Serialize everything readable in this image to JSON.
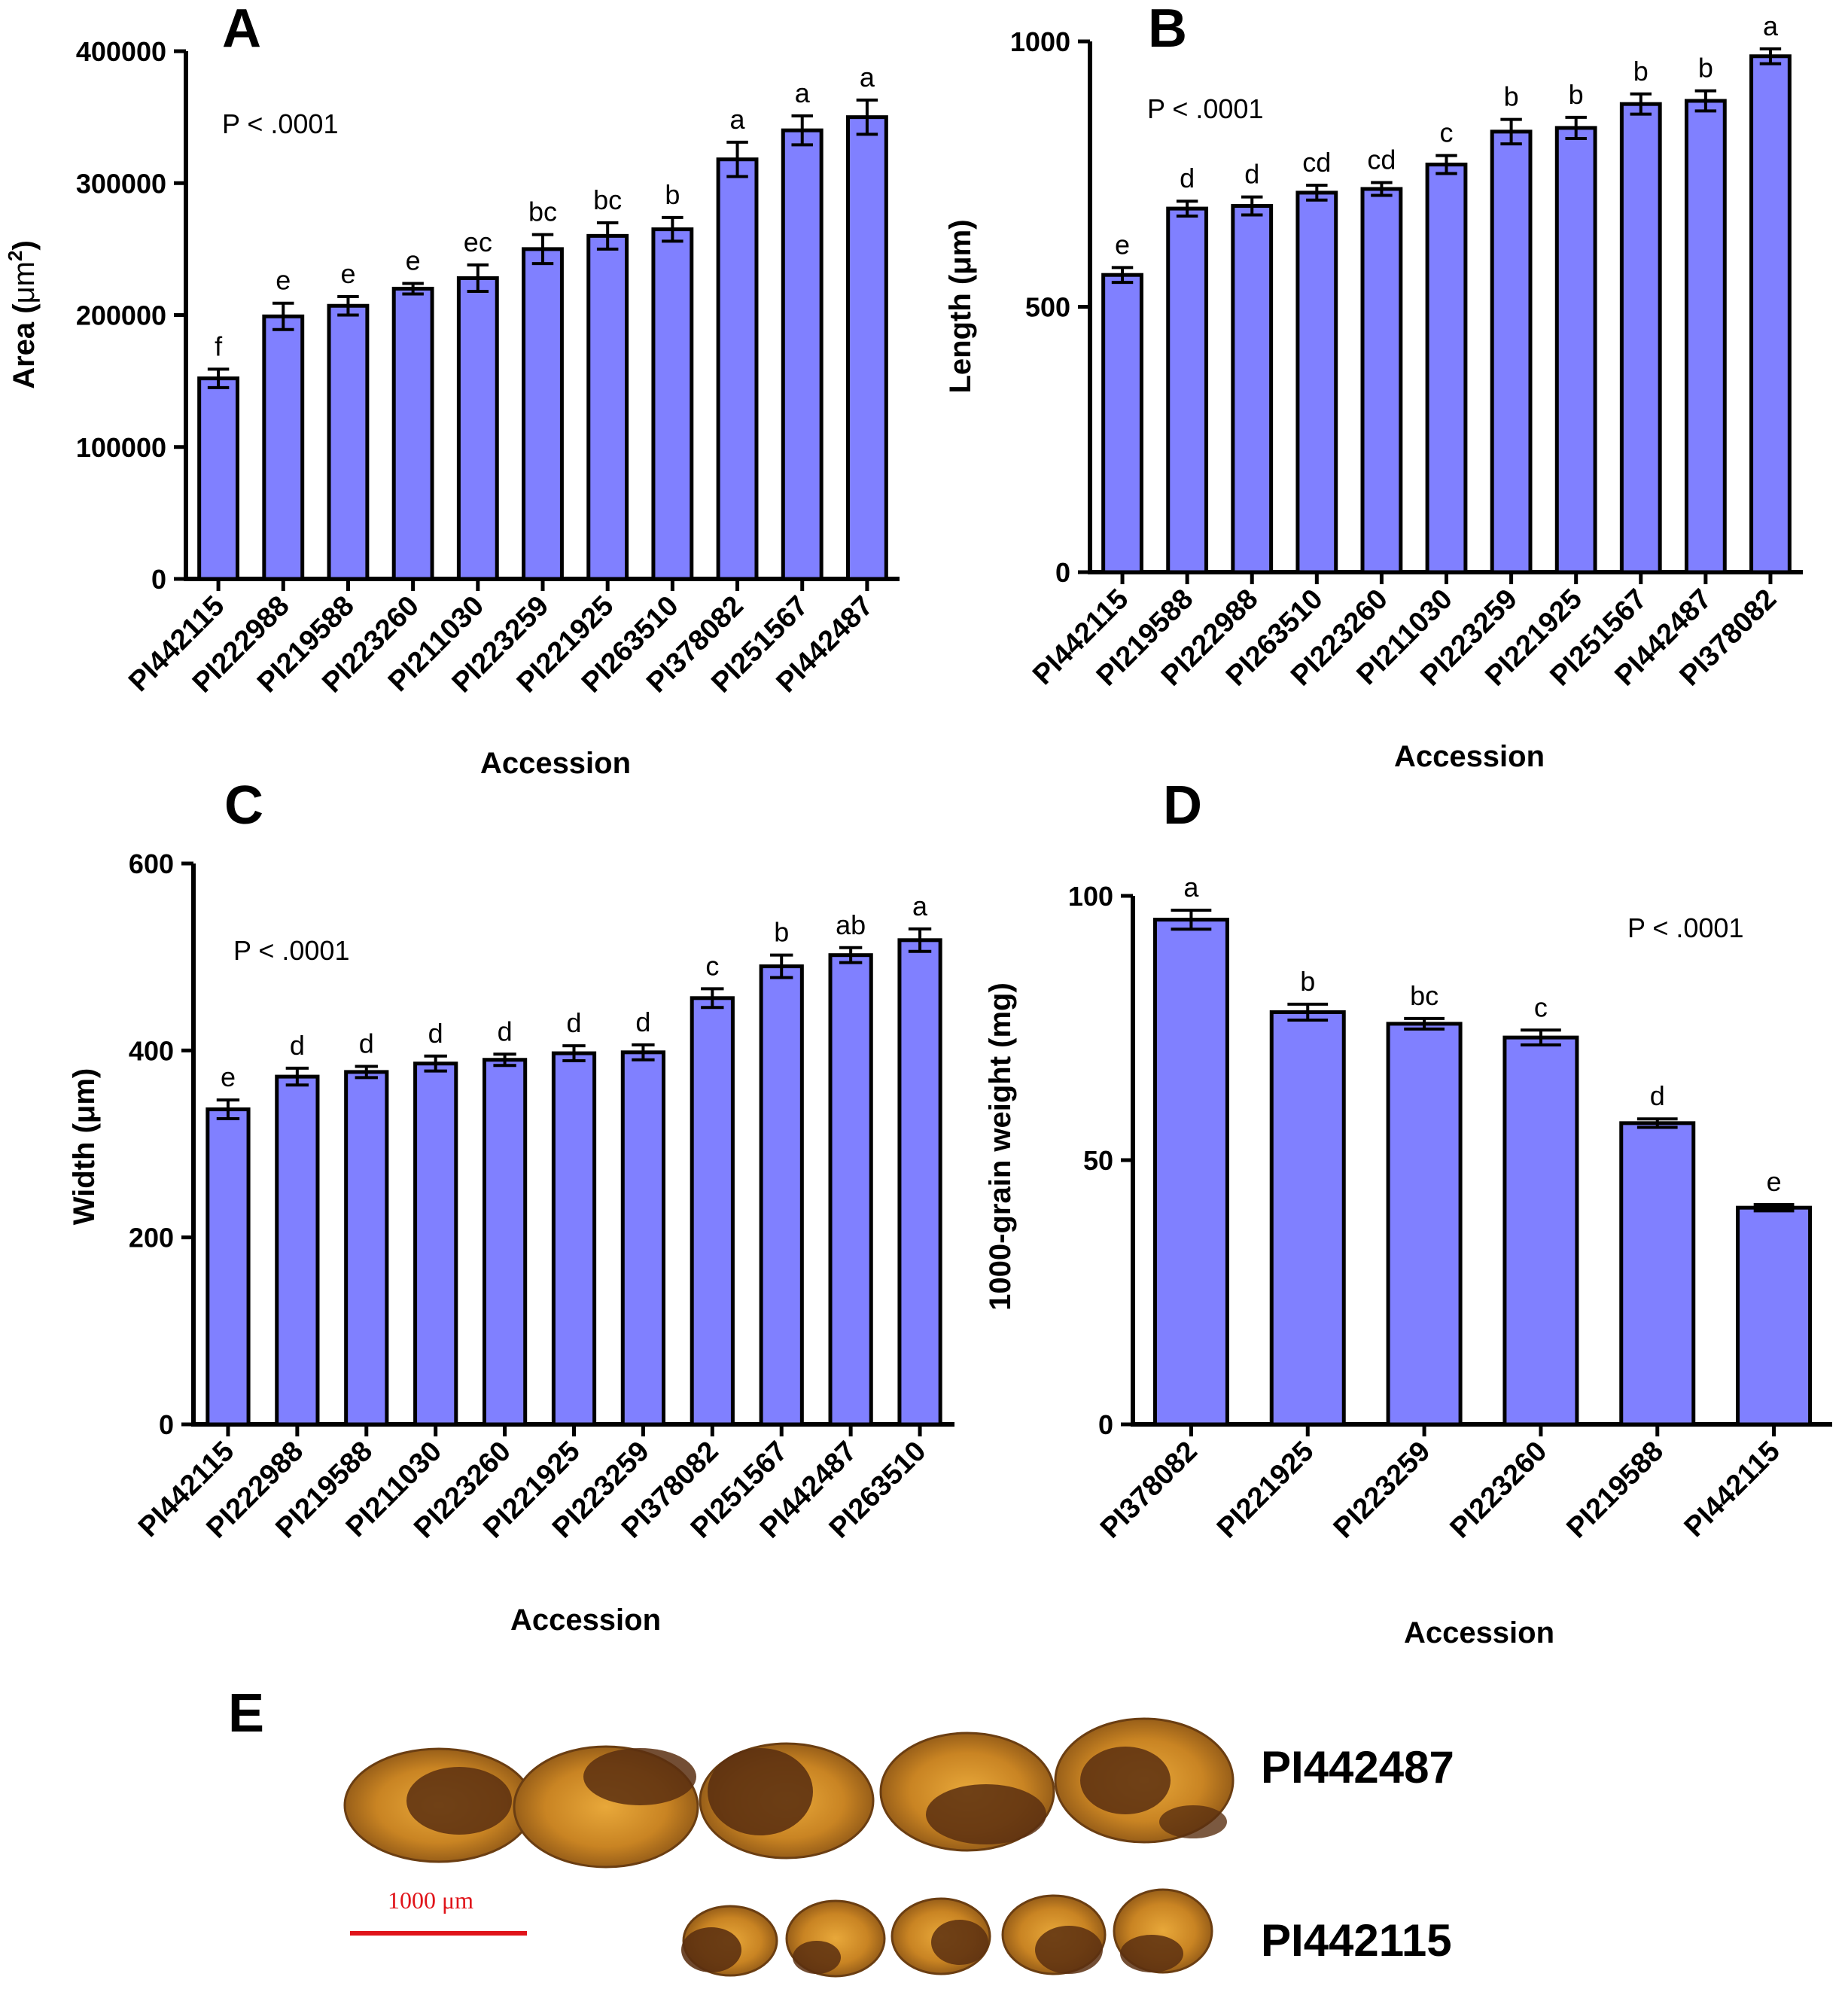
{
  "colors": {
    "bar": "#8080ff",
    "axis": "#000000",
    "scale_bar": "#e0141a",
    "seed_light": "#d9952a",
    "seed_dark": "#5a2f10"
  },
  "chart_data": [
    {
      "panel": "A",
      "type": "bar",
      "pvalue": "P < .0001",
      "ylabel": "Area (μm²)",
      "ylabel_main": "Area (",
      "ylabel_unit": "μm",
      "ylabel_sup": "2",
      "ylabel_close": ")",
      "xlabel": "Accession",
      "ylim": [
        0,
        400000
      ],
      "yticks": [
        0,
        100000,
        200000,
        300000,
        400000
      ],
      "ytick_labels": [
        "0",
        "100000",
        "200000",
        "300000",
        "400000"
      ],
      "categories": [
        "PI442115",
        "PI222988",
        "PI219588",
        "PI223260",
        "PI211030",
        "PI223259",
        "PI221925",
        "PI263510",
        "PI378082",
        "PI251567",
        "PI442487"
      ],
      "values": [
        152000,
        199000,
        207000,
        220000,
        228000,
        250000,
        260000,
        265000,
        318000,
        340000,
        350000
      ],
      "errors": [
        7000,
        10000,
        7000,
        4000,
        10000,
        11000,
        10000,
        9000,
        13000,
        11000,
        13000
      ],
      "letters": [
        "f",
        "e",
        "e",
        "e",
        "ec",
        "bc",
        "bc",
        "b",
        "a",
        "a",
        "a"
      ]
    },
    {
      "panel": "B",
      "type": "bar",
      "pvalue": "P < .0001",
      "ylabel": "Length (μm)",
      "xlabel": "Accession",
      "ylim": [
        0,
        1000
      ],
      "yticks": [
        0,
        500,
        1000
      ],
      "ytick_labels": [
        "0",
        "500",
        "1000"
      ],
      "categories": [
        "PI442115",
        "PI219588",
        "PI222988",
        "PI263510",
        "PI223260",
        "PI211030",
        "PI223259",
        "PI221925",
        "PI251567",
        "PI442487",
        "PI378082"
      ],
      "values": [
        560,
        685,
        690,
        715,
        722,
        768,
        830,
        837,
        882,
        888,
        972
      ],
      "errors": [
        14,
        14,
        17,
        14,
        12,
        17,
        23,
        20,
        19,
        19,
        14
      ],
      "letters": [
        "e",
        "d",
        "d",
        "cd",
        "cd",
        "c",
        "b",
        "b",
        "b",
        "b",
        "a"
      ]
    },
    {
      "panel": "C",
      "type": "bar",
      "pvalue": "P < .0001",
      "ylabel": "Width (μm)",
      "xlabel": "Accession",
      "ylim": [
        0,
        600
      ],
      "yticks": [
        0,
        200,
        400,
        600
      ],
      "ytick_labels": [
        "0",
        "200",
        "400",
        "600"
      ],
      "categories": [
        "PI442115",
        "PI222988",
        "PI219588",
        "PI211030",
        "PI223260",
        "PI221925",
        "PI223259",
        "PI378082",
        "PI251567",
        "PI442487",
        "PI263510"
      ],
      "values": [
        337,
        372,
        377,
        386,
        390,
        397,
        398,
        456,
        490,
        502,
        518
      ],
      "errors": [
        10,
        9,
        6,
        8,
        6,
        8,
        8,
        10,
        12,
        8,
        12
      ],
      "letters": [
        "e",
        "d",
        "d",
        "d",
        "d",
        "d",
        "d",
        "c",
        "b",
        "ab",
        "a"
      ]
    },
    {
      "panel": "D",
      "type": "bar",
      "pvalue": "P < .0001",
      "ylabel": "1000-grain weight (mg)",
      "xlabel": "Accession",
      "ylim": [
        0,
        100
      ],
      "yticks": [
        0,
        50,
        100
      ],
      "ytick_labels": [
        "0",
        "50",
        "100"
      ],
      "categories": [
        "PI378082",
        "PI221925",
        "PI223259",
        "PI223260",
        "PI219588",
        "PI442115"
      ],
      "values": [
        95.5,
        78,
        75.8,
        73.2,
        57,
        41
      ],
      "errors": [
        1.8,
        1.5,
        1.0,
        1.4,
        0.8,
        0.6
      ],
      "letters": [
        "a",
        "b",
        "bc",
        "c",
        "d",
        "e"
      ]
    }
  ],
  "panel_e": {
    "letter": "E",
    "top_label": "PI442487",
    "bottom_label": "PI442115",
    "scale_label": "1000 μm"
  }
}
